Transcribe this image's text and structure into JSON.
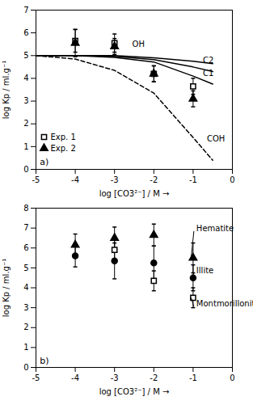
{
  "chart_data": [
    {
      "type": "line",
      "xlabel": "log [CO3²⁻] / M →",
      "ylabel": "log Kp / ml.g⁻¹",
      "xlim": [
        -5,
        0
      ],
      "ylim": [
        0,
        7
      ],
      "xticks": [
        -5,
        -4,
        -3,
        -2,
        -1,
        0
      ],
      "yticks": [
        0,
        1,
        2,
        3,
        4,
        5,
        6,
        7
      ],
      "legend": "lower left",
      "series": [
        {
          "name": "COH",
          "type": "line",
          "line_style": "dashed",
          "x": [
            -5,
            -4,
            -3,
            -2,
            -1,
            -0.5
          ],
          "values": [
            5.0,
            4.85,
            4.35,
            3.35,
            1.4,
            0.4
          ],
          "label_x": -0.65,
          "label_y": 1.35
        },
        {
          "name": "C1",
          "type": "line",
          "line_style": "solid",
          "x": [
            -5,
            -4,
            -3,
            -2,
            -1,
            -0.5
          ],
          "values": [
            5.0,
            5.0,
            4.92,
            4.72,
            4.1,
            3.75
          ],
          "label_x": -0.75,
          "label_y": 4.22
        },
        {
          "name": "C2",
          "type": "line",
          "line_style": "solid",
          "x": [
            -5,
            -4,
            -3,
            -2,
            -1,
            -0.5
          ],
          "values": [
            5.0,
            5.0,
            4.97,
            4.82,
            4.5,
            4.3
          ],
          "label_x": -0.75,
          "label_y": 4.78
        },
        {
          "name": "OH",
          "type": "line",
          "line_style": "solid",
          "x": [
            -5,
            -4,
            -3,
            -2,
            -1,
            -0.5
          ],
          "values": [
            5.0,
            5.0,
            5.0,
            4.9,
            4.75,
            4.65
          ],
          "label_x": -2.55,
          "label_y": 5.5
        },
        {
          "name": "Exp. 1",
          "type": "scatter",
          "marker": "open square",
          "x": [
            -4,
            -3,
            -2,
            -1
          ],
          "values": [
            5.65,
            5.55,
            4.2,
            3.65
          ],
          "errors": [
            0.5,
            0.4,
            0.35,
            0.35
          ]
        },
        {
          "name": "Exp. 2",
          "type": "scatter",
          "marker": "filled triangle",
          "x": [
            -4,
            -3,
            -2,
            -1
          ],
          "values": [
            5.55,
            5.4,
            4.2,
            3.1
          ],
          "errors": [
            0.6,
            0.35,
            0.35,
            0.35
          ]
        }
      ],
      "annotations": [
        {
          "text": "a)",
          "x": -4.9,
          "y": 0.2
        }
      ]
    },
    {
      "type": "scatter",
      "xlabel": "log [CO3²⁻] / M →",
      "ylabel": "log Kp / ml.g⁻¹",
      "xlim": [
        -5,
        0
      ],
      "ylim": [
        0,
        8
      ],
      "xticks": [
        -5,
        -4,
        -3,
        -2,
        -1,
        0
      ],
      "yticks": [
        0,
        1,
        2,
        3,
        4,
        5,
        6,
        7,
        8
      ],
      "series": [
        {
          "name": "Hematite",
          "type": "scatter",
          "marker": "filled triangle",
          "x": [
            -4,
            -3,
            -2,
            -1
          ],
          "values": [
            6.15,
            6.5,
            6.65,
            5.5
          ],
          "errors": [
            0.55,
            0.55,
            0.55,
            0.75
          ],
          "label_x": -0.98,
          "label_y": 6.85,
          "pointer_x": -1.05,
          "pointer_y": 5.5
        },
        {
          "name": "Illite",
          "type": "scatter",
          "marker": "filled circle",
          "x": [
            -4,
            -3,
            -2,
            -1
          ],
          "values": [
            5.6,
            5.35,
            5.25,
            4.5
          ],
          "errors": [
            0.55,
            0.9,
            0.85,
            0.65
          ],
          "label_x": -0.98,
          "label_y": 4.72,
          "pointer_x": -1.05,
          "pointer_y": 4.5
        },
        {
          "name": "Montmorillonite",
          "type": "scatter",
          "marker": "open square",
          "x": [
            -3,
            -2,
            -1
          ],
          "values": [
            5.9,
            4.35,
            3.5
          ],
          "errors": [
            0.65,
            0.5,
            0.5
          ],
          "label_x": -0.98,
          "label_y": 3.05,
          "pointer_x": -1.05,
          "pointer_y": 3.5
        }
      ],
      "annotations": [
        {
          "text": "b)",
          "x": -4.9,
          "y": 0.2
        }
      ]
    }
  ]
}
